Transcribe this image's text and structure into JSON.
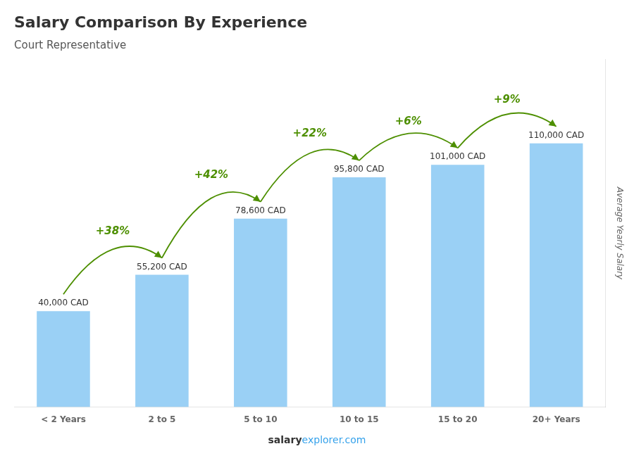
{
  "chart_data": {
    "type": "bar",
    "title": "Salary Comparison By Experience",
    "subtitle": "Court Representative",
    "categories": [
      "< 2 Years",
      "2 to 5",
      "5 to 10",
      "10 to 15",
      "15 to 20",
      "20+ Years"
    ],
    "values": [
      40000,
      55200,
      78600,
      95800,
      101000,
      110000
    ],
    "value_labels": [
      "40,000 CAD",
      "55,200 CAD",
      "78,600 CAD",
      "95,800 CAD",
      "101,000 CAD",
      "110,000 CAD"
    ],
    "data_labels": true,
    "annotations": [
      "+38%",
      "+42%",
      "+22%",
      "+6%",
      "+9%"
    ],
    "footer": [
      "salary",
      "explorer.com"
    ],
    "ylabel": "Average Yearly Salary",
    "ylim": [
      0,
      145000
    ],
    "tick_labels": "x",
    "grid": false
  }
}
